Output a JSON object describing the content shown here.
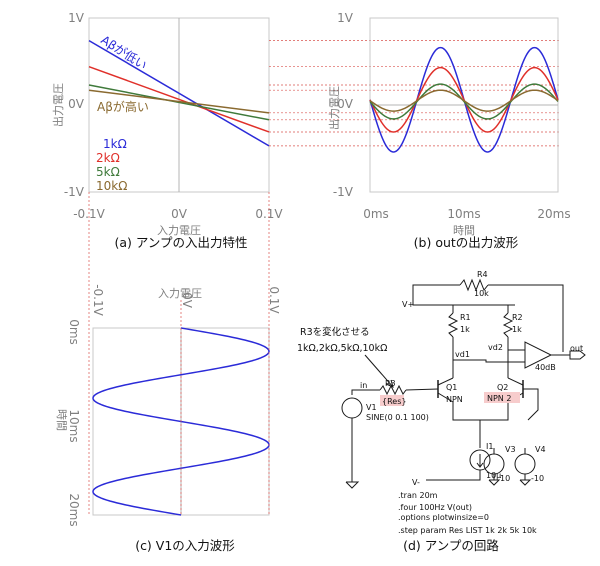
{
  "captions": {
    "a": "(a) アンプの入出力特性",
    "b": "(b) outの出力波形",
    "c": "(c) V1の入力波形",
    "d": "(d) アンプの回路"
  },
  "chart_data": [
    {
      "id": "a",
      "type": "line",
      "xlabel": "入力電圧",
      "ylabel": "出力電圧",
      "x_ticks": [
        "-0.1V",
        "0V",
        "0.1V"
      ],
      "y_ticks": [
        "1V",
        "0V",
        "-1V"
      ],
      "xlim": [
        -0.1,
        0.1
      ],
      "ylim": [
        -1,
        1
      ],
      "x": [
        -0.1,
        0.1
      ],
      "series": [
        {
          "name": "1kΩ",
          "color": "#2b2bd8",
          "values": [
            0.74,
            -0.47
          ]
        },
        {
          "name": "2kΩ",
          "color": "#e0302a",
          "values": [
            0.44,
            -0.31
          ]
        },
        {
          "name": "5kΩ",
          "color": "#3f7a3b",
          "values": [
            0.23,
            -0.17
          ]
        },
        {
          "name": "10kΩ",
          "color": "#8a6a30",
          "values": [
            0.17,
            -0.09
          ]
        }
      ],
      "annotations": {
        "low": "Aβが低い",
        "high": "Aβが高い"
      },
      "grid": false
    },
    {
      "id": "b",
      "type": "line",
      "xlabel": "時間",
      "ylabel": "出力電圧",
      "x_ticks": [
        "0ms",
        "10ms",
        "20ms"
      ],
      "y_ticks": [
        "1V",
        "0V",
        "-1V"
      ],
      "xlim": [
        0,
        20
      ],
      "ylim": [
        -1,
        1
      ],
      "frequency_hz": 100,
      "series": [
        {
          "name": "1kΩ",
          "color": "#2b2bd8",
          "offset": 0.06,
          "amplitude": 0.6
        },
        {
          "name": "2kΩ",
          "color": "#e0302a",
          "offset": 0.06,
          "amplitude": 0.37
        },
        {
          "name": "5kΩ",
          "color": "#3f7a3b",
          "offset": 0.04,
          "amplitude": 0.2
        },
        {
          "name": "10kΩ",
          "color": "#8a6a30",
          "offset": 0.05,
          "amplitude": 0.12
        }
      ],
      "grid": false
    },
    {
      "id": "c",
      "type": "line",
      "orientation": "vertical",
      "xlabel": "入力電圧",
      "ylabel": "時間",
      "x_ticks": [
        "-0.1V",
        "0V",
        "0.1V"
      ],
      "y_ticks": [
        "0ms",
        "10ms",
        "20ms"
      ],
      "xlim": [
        -0.1,
        0.1
      ],
      "ylim": [
        0,
        20
      ],
      "series": [
        {
          "name": "V1",
          "color": "#2b2bd8",
          "offset": 0,
          "amplitude": 0.1,
          "frequency_hz": 100
        }
      ],
      "grid": false
    }
  ],
  "circuit": {
    "note": "R3を変化させる",
    "note2": "1kΩ,2kΩ,5kΩ,10kΩ",
    "r4": "R4",
    "r4_val": "10k",
    "vplus": "V+",
    "r1": "R1",
    "r1_val": "1k",
    "r2": "R2",
    "r2_val": "1k",
    "vd1": "vd1",
    "vd2": "vd2",
    "out": "out",
    "gain": "40dB",
    "in": "in",
    "r3": "R3",
    "r3_val": "{Res}",
    "q1": "Q1",
    "q1_type": "NPN",
    "q2": "Q2",
    "q2_type": "NPN 2",
    "v1": "V1",
    "v1_val": "SINE(0 0.1 100)",
    "i1": "I1",
    "i1_val": "10μ",
    "vminus": "V-",
    "v3": "V3",
    "v3_val": "10",
    "v4": "V4",
    "v4_val": "-10",
    "v3_plus": "V+",
    "v4_minus": "V-",
    "spice": [
      ".tran 20m",
      ".four 100Hz V(out)",
      ".options plotwinsize=0",
      ".step param Res LIST 1k 2k 5k 10k"
    ]
  }
}
